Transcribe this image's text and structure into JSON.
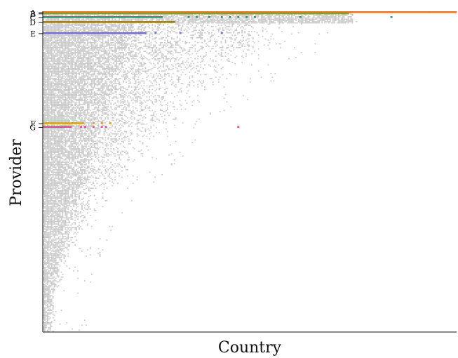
{
  "chart_data": {
    "type": "heatmap",
    "title": "",
    "xlabel": "Country",
    "ylabel": "Provider",
    "grid": false,
    "legend": "none",
    "description_free_matrix": true,
    "colors": {
      "background_cells": "#c8c8c8",
      "axis": "#111111",
      "A": "#e6782a",
      "B": "#8c9a33",
      "C": "#2f9a7a",
      "D": "#9b7d2a",
      "E": "#7b70c8",
      "F": "#d7a22a",
      "G": "#d24f94"
    },
    "highlighted_providers": [
      {
        "label": "A",
        "row_rank": 1,
        "x_end": 1.0,
        "extra_cells": [
          0.84,
          0.93
        ]
      },
      {
        "label": "B",
        "row_rank": 2,
        "x_end": 0.74,
        "extra_cells": [
          0.45,
          0.48,
          0.5,
          0.52,
          0.55,
          0.58,
          0.6,
          0.63,
          0.67,
          0.69,
          0.72
        ]
      },
      {
        "label": "C",
        "row_rank": 5,
        "x_end": 0.29,
        "extra_cells": [
          0.35,
          0.37,
          0.4,
          0.43,
          0.45,
          0.47,
          0.49,
          0.51,
          0.62,
          0.84
        ]
      },
      {
        "label": "D",
        "row_rank": 9,
        "x_end": 0.32,
        "extra_cells": []
      },
      {
        "label": "E",
        "row_rank": 18,
        "x_end": 0.25,
        "extra_cells": [
          0.27,
          0.33,
          0.43
        ]
      },
      {
        "label": "F",
        "row_rank": 91,
        "x_end": 0.1,
        "extra_cells": [
          0.12,
          0.14,
          0.16
        ]
      },
      {
        "label": "G",
        "row_rank": 94,
        "x_end": 0.07,
        "extra_cells": [
          0.09,
          0.1,
          0.12,
          0.14,
          0.15,
          0.47
        ]
      }
    ]
  }
}
